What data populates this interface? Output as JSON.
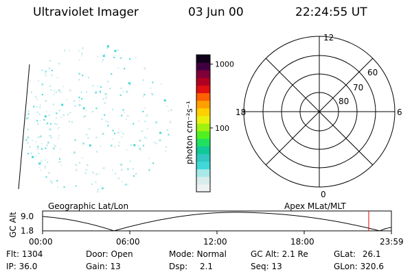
{
  "header": {
    "title": "Ultraviolet Imager",
    "date": "03 Jun 00",
    "time": "22:24:55 UT"
  },
  "colorbar": {
    "unit_label": "photon cm⁻²s⁻¹",
    "ticks": [
      {
        "label": "1000",
        "value": 1000
      },
      {
        "label": "100",
        "value": 100
      }
    ],
    "colors": [
      "#eef2f2",
      "#d8ecec",
      "#a8e8e8",
      "#40d8d8",
      "#30c8c0",
      "#10c898",
      "#20e060",
      "#50f020",
      "#a0f010",
      "#e8f010",
      "#ffd000",
      "#ffa000",
      "#ff6000",
      "#e01010",
      "#b00020",
      "#80003a",
      "#400040",
      "#10001a"
    ]
  },
  "polar_plot": {
    "mlt_labels": {
      "top": "12",
      "left": "18",
      "right": "6",
      "bottom": "0"
    },
    "lat_labels": [
      {
        "label": "60",
        "value": 60
      },
      {
        "label": "70",
        "value": 70
      },
      {
        "label": "80",
        "value": 80
      }
    ]
  },
  "timeline": {
    "left_label": "Geographic Lat/Lon",
    "right_label": "Apex MLat/MLT",
    "y_axis_label": "GC Alt",
    "y_ticks": [
      "9.0",
      "1.8"
    ],
    "x_ticks": [
      "00:00",
      "06:00",
      "12:00",
      "18:00",
      "23:59"
    ],
    "current_marker_color": "#e00000"
  },
  "info": {
    "flt": {
      "label": "Flt:",
      "value": "1304"
    },
    "ip": {
      "label": "IP:",
      "value": "36.0"
    },
    "door": {
      "label": "Door:",
      "value": "Open"
    },
    "gain": {
      "label": "Gain:",
      "value": "13"
    },
    "mode": {
      "label": "Mode:",
      "value": "Normal"
    },
    "dsp": {
      "label": "Dsp:",
      "value": "2.1"
    },
    "gcalt": {
      "label": "GC Alt:",
      "value": "2.1 Re"
    },
    "seq": {
      "label": "Seq:",
      "value": "13"
    },
    "glat": {
      "label": "GLat:",
      "value": "26.1"
    },
    "glon": {
      "label": "GLon:",
      "value": "320.6"
    }
  }
}
